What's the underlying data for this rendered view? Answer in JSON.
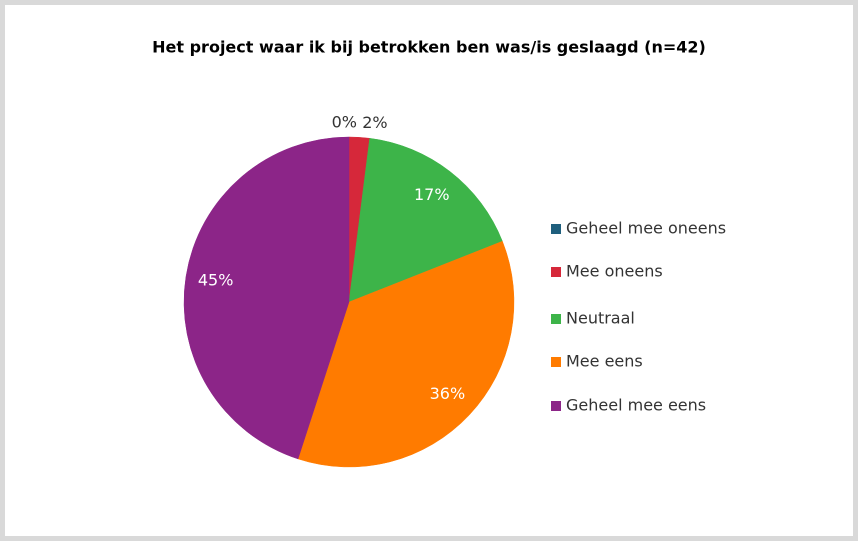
{
  "chart_data": {
    "type": "pie",
    "title": "Het project waar ik bij betrokken ben was/is geslaagd  (n=42)",
    "categories": [
      "Geheel mee oneens",
      "Mee oneens",
      "Neutraal",
      "Mee eens",
      "Geheel mee eens"
    ],
    "values": [
      0,
      2,
      17,
      36,
      45
    ],
    "value_labels": [
      "0%",
      "2%",
      "17%",
      "36%",
      "45%"
    ],
    "colors": [
      "#1f5f7d",
      "#d6283a",
      "#3db449",
      "#ff7b00",
      "#8c2588"
    ],
    "legend": "right"
  }
}
